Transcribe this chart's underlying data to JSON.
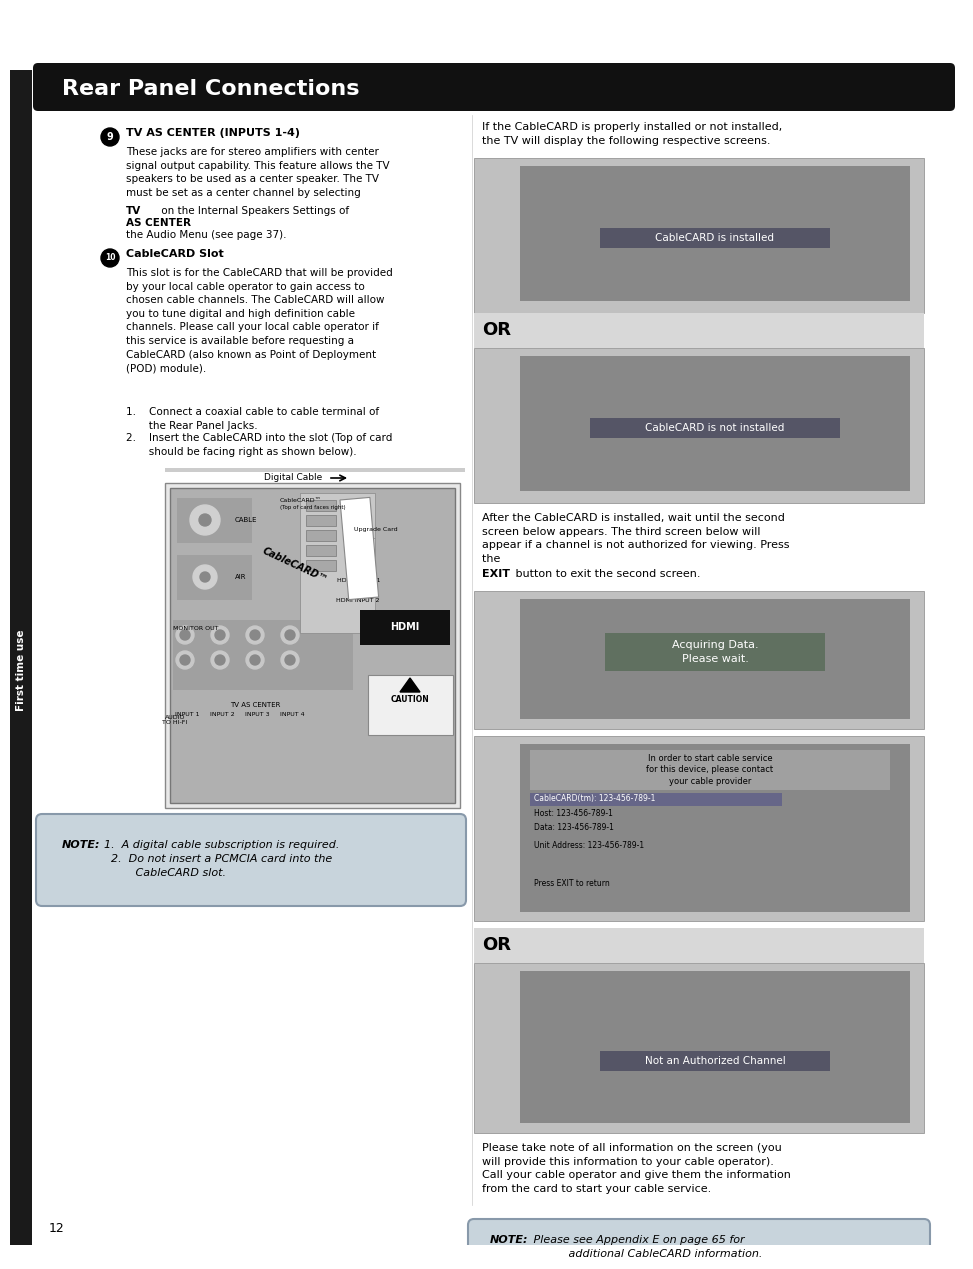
{
  "title": "Rear Panel Connections",
  "bg_color": "#ffffff",
  "header_bg": "#111111",
  "header_text_color": "#ffffff",
  "sidebar_color": "#1a1a1a",
  "sidebar_text": "First time use",
  "note_bg": "#c8d4dc",
  "screen_bg": "#888888",
  "screen_outer_bg": "#c0c0c0",
  "screen_dark_bar": "#555566",
  "or_bg": "#e0e0e0",
  "section9_title": "TV AS CENTER (INPUTS 1-4)",
  "section9_text_part1": "These jacks are for stereo amplifiers with center\nsignal output capability. This feature allows the TV\nspeakers to be used as a center speaker. The TV\nmust be set as a center channel by selecting ",
  "section9_bold": "TV\nAS CENTER",
  "section9_text_part2": " on the Internal Speakers Settings of\nthe Audio Menu (see page 37).",
  "section10_title": "CableCARD Slot",
  "section10_text": "This slot is for the CableCARD that will be provided\nby your local cable operator to gain access to\nchosen cable channels. The CableCARD will allow\nyou to tune digital and high definition cable\nchannels. Please call your local cable operator if\nthis service is available before requesting a\nCableCARD (also known as Point of Deployment\n(POD) module).",
  "step1": "Connect a coaxial cable to cable terminal of\nthe Rear Panel Jacks.",
  "step2": "Insert the CableCARD into the slot (Top of card\nshould be facing right as shown below).",
  "right_intro": "If the CableCARD is properly installed or not installed,\nthe TV will display the following respective screens.",
  "screen1_text": "CableCARD is installed",
  "screen2_text": "CableCARD is not installed",
  "right_middle_text": "After the CableCARD is installed, wait until the second\nscreen below appears. The third screen below will\nappear if a channel is not authorized for viewing. Press\nthe EXIT button to exit the second screen.",
  "screen3_text": "Acquiring Data.\nPlease wait.",
  "screen5_text": "Not an Authorized Channel",
  "note_left_bold": "NOTE:",
  "note_left_text": "  1.  A digital cable subscription is required.\n    2.  Do not insert a PCMCIA card into the\n           CableCARD slot.",
  "note_right_bold": "NOTE:",
  "note_right_text": "  Please see Appendix E on page 65 for\n           additional CableCARD information.",
  "bottom_right_text": "Please take note of all information on the screen (you\nwill provide this information to your cable operator).\nCall your cable operator and give them the information\nfrom the card to start your cable service.",
  "page_number": "12",
  "digital_cable_label": "Digital Cable"
}
